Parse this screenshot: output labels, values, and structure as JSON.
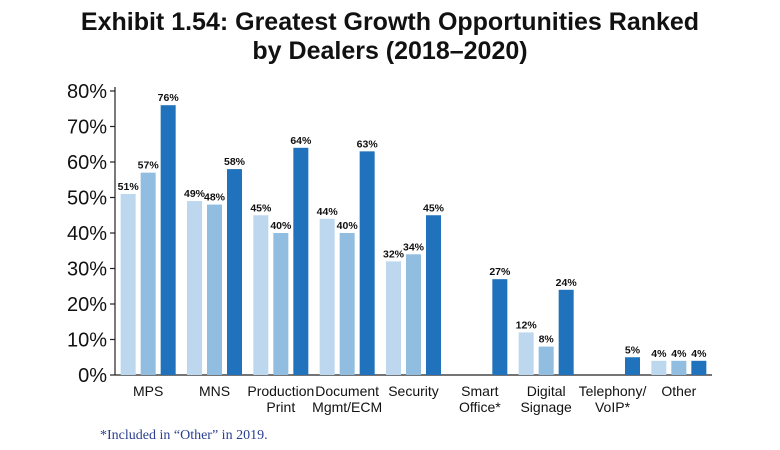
{
  "chart_data": {
    "type": "bar",
    "title_lines": [
      "Exhibit 1.54: Greatest Growth Opportunities Ranked",
      "by Dealers (2018–2020)"
    ],
    "categories": [
      [
        "MPS"
      ],
      [
        "MNS"
      ],
      [
        "Production",
        "Print"
      ],
      [
        "Document",
        "Mgmt/ECM"
      ],
      [
        "Security"
      ],
      [
        "Smart",
        "Office*"
      ],
      [
        "Digital",
        "Signage"
      ],
      [
        "Telephony/",
        "VoIP*"
      ],
      [
        "Other"
      ]
    ],
    "series": [
      {
        "values": [
          51,
          49,
          45,
          44,
          32,
          null,
          12,
          null,
          4
        ],
        "color": "#bdd7ee"
      },
      {
        "values": [
          57,
          48,
          40,
          40,
          34,
          null,
          8,
          null,
          4
        ],
        "color": "#91bde0"
      },
      {
        "values": [
          76,
          58,
          64,
          63,
          45,
          27,
          24,
          5,
          4
        ],
        "color": "#1f72bb"
      }
    ],
    "value_suffix": "%",
    "ylim": [
      0,
      80
    ],
    "yticks": [
      "0%",
      "10%",
      "20%",
      "30%",
      "40%",
      "50%",
      "60%",
      "70%",
      "80%"
    ],
    "grid": false,
    "legend": "none"
  },
  "footnote": "*Included in “Other” in 2019."
}
